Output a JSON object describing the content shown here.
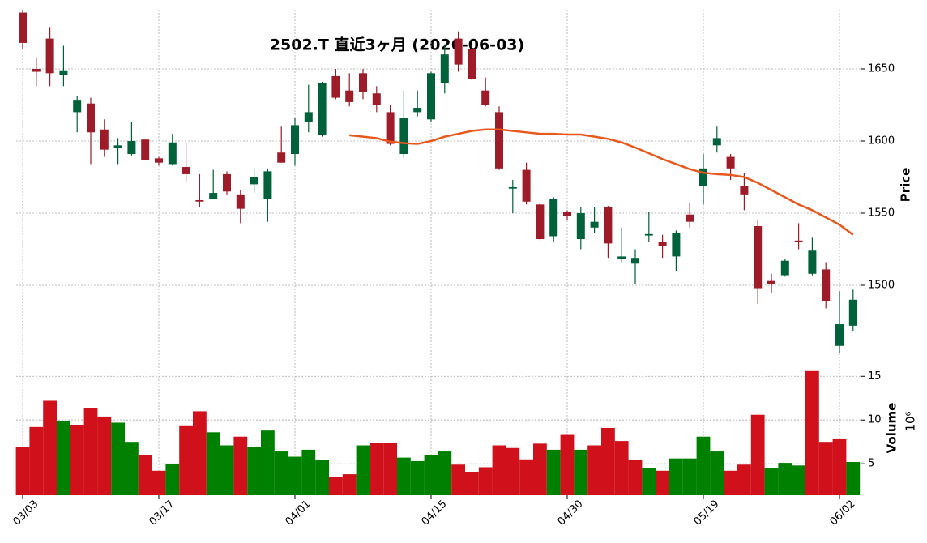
{
  "chart_data": {
    "type": "candlestick",
    "title": "2502.T 直近3ヶ月 (2026-06-03)",
    "ylabel": "Price",
    "categories": [
      "03/03",
      null,
      null,
      null,
      null,
      null,
      null,
      null,
      null,
      null,
      "03/17",
      null,
      null,
      null,
      null,
      null,
      null,
      null,
      null,
      null,
      "04/01",
      null,
      null,
      null,
      null,
      null,
      null,
      null,
      null,
      null,
      "04/15",
      null,
      null,
      null,
      null,
      null,
      null,
      null,
      null,
      null,
      "04/30",
      null,
      null,
      null,
      null,
      null,
      null,
      null,
      null,
      null,
      "05/19",
      null,
      null,
      null,
      null,
      null,
      null,
      null,
      null,
      null,
      "06/02",
      null
    ],
    "open": [
      1689,
      1650,
      1671,
      1646,
      1620,
      1626,
      1608,
      1595,
      1591,
      1601,
      1588,
      1584,
      1582,
      1559,
      1560,
      1577,
      1563,
      1570,
      1560,
      1592,
      1591,
      1613,
      1604,
      1645,
      1635,
      1647,
      1633,
      1620,
      1591,
      1620,
      1615,
      1640,
      1671,
      1664,
      1635,
      1620,
      1567,
      1580,
      1556,
      1534,
      1551,
      1532,
      1540,
      1554,
      1518,
      1515,
      1534.5,
      1530,
      1520,
      1549,
      1569,
      1597,
      1589,
      1569,
      1541,
      1503,
      1507,
      1531,
      1508,
      1511,
      1458,
      1472
    ],
    "high": [
      1691,
      1658,
      1679,
      1666,
      1631,
      1630,
      1615,
      1602,
      1613,
      1601,
      1589,
      1605,
      1599,
      1577,
      1580,
      1579,
      1566,
      1581,
      1581,
      1610,
      1616,
      1639,
      1641,
      1650,
      1647,
      1650,
      1638,
      1625,
      1635,
      1635,
      1648,
      1667,
      1676,
      1667,
      1644,
      1624,
      1573,
      1585,
      1557,
      1561,
      1552,
      1554,
      1554,
      1555,
      1540,
      1525,
      1551,
      1535,
      1538,
      1557,
      1591,
      1610,
      1591,
      1578,
      1545,
      1508,
      1518,
      1543,
      1533,
      1516,
      1496,
      1497
    ],
    "low": [
      1664,
      1638,
      1638,
      1638,
      1606,
      1584,
      1589,
      1584,
      1590,
      1587,
      1583,
      1583,
      1572,
      1554,
      1561,
      1563,
      1543,
      1564,
      1544,
      1585,
      1583,
      1606,
      1603,
      1629,
      1624,
      1629,
      1620,
      1597,
      1588,
      1617,
      1613,
      1633,
      1648,
      1642,
      1624,
      1580,
      1550,
      1556,
      1531,
      1530,
      1545,
      1525,
      1536,
      1519,
      1516,
      1501,
      1530,
      1519,
      1510,
      1540,
      1556,
      1592,
      1573,
      1552,
      1487,
      1495,
      1506,
      1525,
      1507,
      1484,
      1453,
      1468
    ],
    "close": [
      1668,
      1648,
      1647,
      1649,
      1628,
      1606,
      1594,
      1597,
      1600,
      1587,
      1585,
      1599,
      1577,
      1558,
      1564,
      1565,
      1553,
      1575,
      1579,
      1585,
      1611,
      1620,
      1640,
      1630,
      1627,
      1634,
      1625,
      1598,
      1616,
      1623,
      1647,
      1660,
      1653,
      1643,
      1625,
      1581,
      1568,
      1558,
      1532,
      1560,
      1548,
      1550,
      1544,
      1529,
      1520,
      1519,
      1535.5,
      1527,
      1536,
      1544,
      1581,
      1602,
      1581,
      1563,
      1498,
      1501,
      1517,
      1530,
      1524,
      1489,
      1473,
      1490
    ],
    "up_color": "#00613a",
    "down_color": "#9e1b2a",
    "ma": {
      "color": "#e8581c",
      "values": [
        null,
        null,
        null,
        null,
        null,
        null,
        null,
        null,
        null,
        null,
        null,
        null,
        null,
        null,
        null,
        null,
        null,
        null,
        null,
        null,
        null,
        null,
        null,
        null,
        1604,
        1603,
        1602,
        1599.5,
        1598.5,
        1598,
        1600,
        1603,
        1605,
        1607,
        1608,
        1608,
        1607,
        1606,
        1605,
        1605,
        1604.5,
        1604.5,
        1603,
        1601.5,
        1599,
        1595.5,
        1591.5,
        1587.5,
        1584,
        1580.5,
        1578,
        1577,
        1576.5,
        1575,
        1571,
        1566,
        1561,
        1556,
        1552,
        1547,
        1542,
        1535
      ]
    },
    "ylim": [
      1450,
      1691
    ],
    "yticks": [
      1500,
      1550,
      1600,
      1650
    ],
    "grid": true,
    "volume": {
      "label": "Volume",
      "multiplier": "10⁶",
      "up_color": "#008000",
      "down_color": "#d0101a",
      "values": [
        6.9,
        9.2,
        12.2,
        9.9,
        9.4,
        11.4,
        10.4,
        9.7,
        7.5,
        6.0,
        4.2,
        5.0,
        9.3,
        11.0,
        8.6,
        7.1,
        8.1,
        6.9,
        8.8,
        6.4,
        5.8,
        6.6,
        5.4,
        3.5,
        3.8,
        7.1,
        7.4,
        7.4,
        5.7,
        5.3,
        6.0,
        6.4,
        4.9,
        4.0,
        4.6,
        7.1,
        6.8,
        5.5,
        7.3,
        6.6,
        8.3,
        6.6,
        7.1,
        9.1,
        7.6,
        5.4,
        4.5,
        4.2,
        5.6,
        5.6,
        8.1,
        6.4,
        4.2,
        4.9,
        10.6,
        4.5,
        5.1,
        4.8,
        15.6,
        7.5,
        7.8,
        5.2
      ],
      "ylim": [
        1.4,
        16.6
      ],
      "yticks": [
        5,
        10,
        15
      ]
    }
  }
}
